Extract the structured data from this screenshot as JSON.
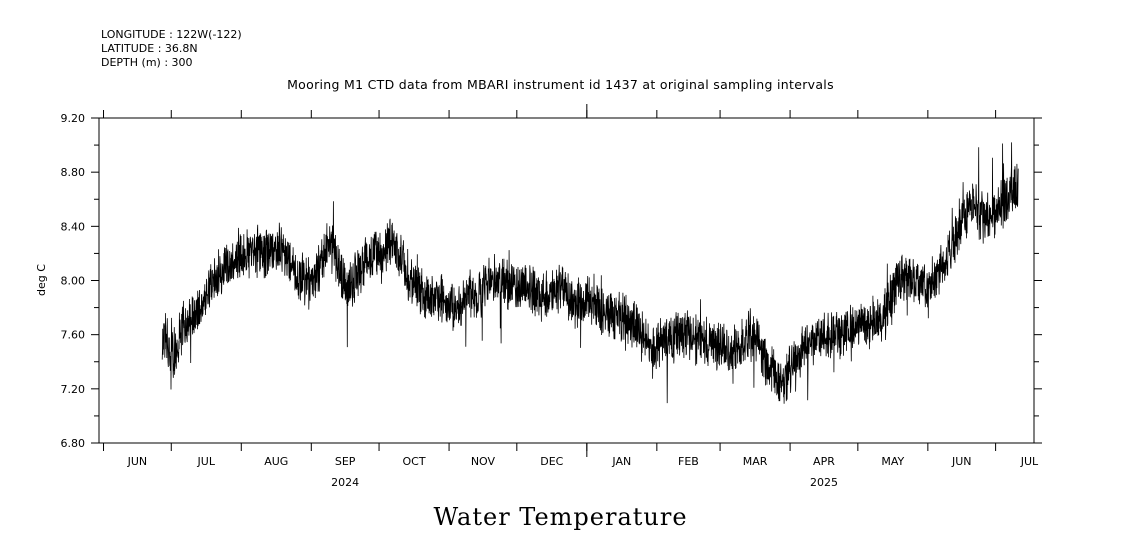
{
  "header": {
    "longitude": "LONGITUDE : 122W(-122)",
    "latitude": "LATITUDE : 36.8N",
    "depth": "DEPTH (m) : 300"
  },
  "footer_title": "Water Temperature",
  "chart_data": {
    "type": "line",
    "title": "Mooring M1 CTD data from MBARI instrument id 1437 at original sampling intervals",
    "xlabel": "",
    "ylabel": "deg C",
    "ylim": [
      6.8,
      9.2
    ],
    "yticks": [
      6.8,
      7.2,
      7.6,
      8.0,
      8.4,
      8.8,
      9.2
    ],
    "ytick_labels": [
      "6.80",
      "7.20",
      "7.60",
      "8.00",
      "8.40",
      "8.80",
      "9.20"
    ],
    "x_unit": "days since 2024-06-01",
    "xlim": [
      -2,
      412
    ],
    "month_labels": [
      "JUN",
      "JUL",
      "AUG",
      "SEP",
      "OCT",
      "NOV",
      "DEC",
      "JAN",
      "FEB",
      "MAR",
      "APR",
      "MAY",
      "JUN",
      "JUL"
    ],
    "month_starts": [
      0,
      30,
      61,
      92,
      122,
      153,
      183,
      214,
      245,
      273,
      304,
      334,
      365,
      395
    ],
    "year_labels": [
      {
        "label": "2024",
        "day": 107
      },
      {
        "label": "2025",
        "day": 319
      }
    ],
    "series": [
      {
        "name": "Water Temperature",
        "smoothed_mean": [
          {
            "x": 26,
            "y": 7.62
          },
          {
            "x": 29,
            "y": 7.48
          },
          {
            "x": 31,
            "y": 7.45
          },
          {
            "x": 34,
            "y": 7.62
          },
          {
            "x": 38,
            "y": 7.72
          },
          {
            "x": 42,
            "y": 7.78
          },
          {
            "x": 46,
            "y": 7.9
          },
          {
            "x": 50,
            "y": 8.02
          },
          {
            "x": 55,
            "y": 8.12
          },
          {
            "x": 60,
            "y": 8.2
          },
          {
            "x": 66,
            "y": 8.22
          },
          {
            "x": 72,
            "y": 8.2
          },
          {
            "x": 78,
            "y": 8.25
          },
          {
            "x": 83,
            "y": 8.12
          },
          {
            "x": 88,
            "y": 8.0
          },
          {
            "x": 92,
            "y": 7.98
          },
          {
            "x": 96,
            "y": 8.12
          },
          {
            "x": 100,
            "y": 8.28
          },
          {
            "x": 104,
            "y": 8.1
          },
          {
            "x": 108,
            "y": 7.95
          },
          {
            "x": 113,
            "y": 8.05
          },
          {
            "x": 118,
            "y": 8.18
          },
          {
            "x": 123,
            "y": 8.22
          },
          {
            "x": 127,
            "y": 8.28
          },
          {
            "x": 131,
            "y": 8.2
          },
          {
            "x": 134,
            "y": 8.05
          },
          {
            "x": 139,
            "y": 7.95
          },
          {
            "x": 145,
            "y": 7.88
          },
          {
            "x": 151,
            "y": 7.85
          },
          {
            "x": 156,
            "y": 7.78
          },
          {
            "x": 161,
            "y": 7.92
          },
          {
            "x": 166,
            "y": 7.9
          },
          {
            "x": 171,
            "y": 8.0
          },
          {
            "x": 176,
            "y": 8.02
          },
          {
            "x": 181,
            "y": 7.95
          },
          {
            "x": 187,
            "y": 7.98
          },
          {
            "x": 193,
            "y": 7.88
          },
          {
            "x": 198,
            "y": 7.92
          },
          {
            "x": 203,
            "y": 7.95
          },
          {
            "x": 208,
            "y": 7.82
          },
          {
            "x": 213,
            "y": 7.85
          },
          {
            "x": 219,
            "y": 7.8
          },
          {
            "x": 224,
            "y": 7.75
          },
          {
            "x": 229,
            "y": 7.72
          },
          {
            "x": 234,
            "y": 7.7
          },
          {
            "x": 238,
            "y": 7.6
          },
          {
            "x": 243,
            "y": 7.52
          },
          {
            "x": 248,
            "y": 7.55
          },
          {
            "x": 253,
            "y": 7.58
          },
          {
            "x": 258,
            "y": 7.6
          },
          {
            "x": 263,
            "y": 7.58
          },
          {
            "x": 268,
            "y": 7.55
          },
          {
            "x": 273,
            "y": 7.5
          },
          {
            "x": 278,
            "y": 7.48
          },
          {
            "x": 283,
            "y": 7.55
          },
          {
            "x": 288,
            "y": 7.62
          },
          {
            "x": 292,
            "y": 7.45
          },
          {
            "x": 297,
            "y": 7.3
          },
          {
            "x": 301,
            "y": 7.25
          },
          {
            "x": 305,
            "y": 7.35
          },
          {
            "x": 310,
            "y": 7.48
          },
          {
            "x": 315,
            "y": 7.55
          },
          {
            "x": 320,
            "y": 7.6
          },
          {
            "x": 325,
            "y": 7.58
          },
          {
            "x": 330,
            "y": 7.65
          },
          {
            "x": 335,
            "y": 7.7
          },
          {
            "x": 340,
            "y": 7.68
          },
          {
            "x": 345,
            "y": 7.72
          },
          {
            "x": 350,
            "y": 7.95
          },
          {
            "x": 355,
            "y": 8.05
          },
          {
            "x": 360,
            "y": 7.98
          },
          {
            "x": 365,
            "y": 7.92
          },
          {
            "x": 370,
            "y": 8.05
          },
          {
            "x": 375,
            "y": 8.22
          },
          {
            "x": 380,
            "y": 8.45
          },
          {
            "x": 385,
            "y": 8.55
          },
          {
            "x": 390,
            "y": 8.45
          },
          {
            "x": 395,
            "y": 8.5
          },
          {
            "x": 400,
            "y": 8.6
          },
          {
            "x": 405,
            "y": 8.7
          }
        ],
        "max": 9.02,
        "min": 6.97
      }
    ]
  }
}
